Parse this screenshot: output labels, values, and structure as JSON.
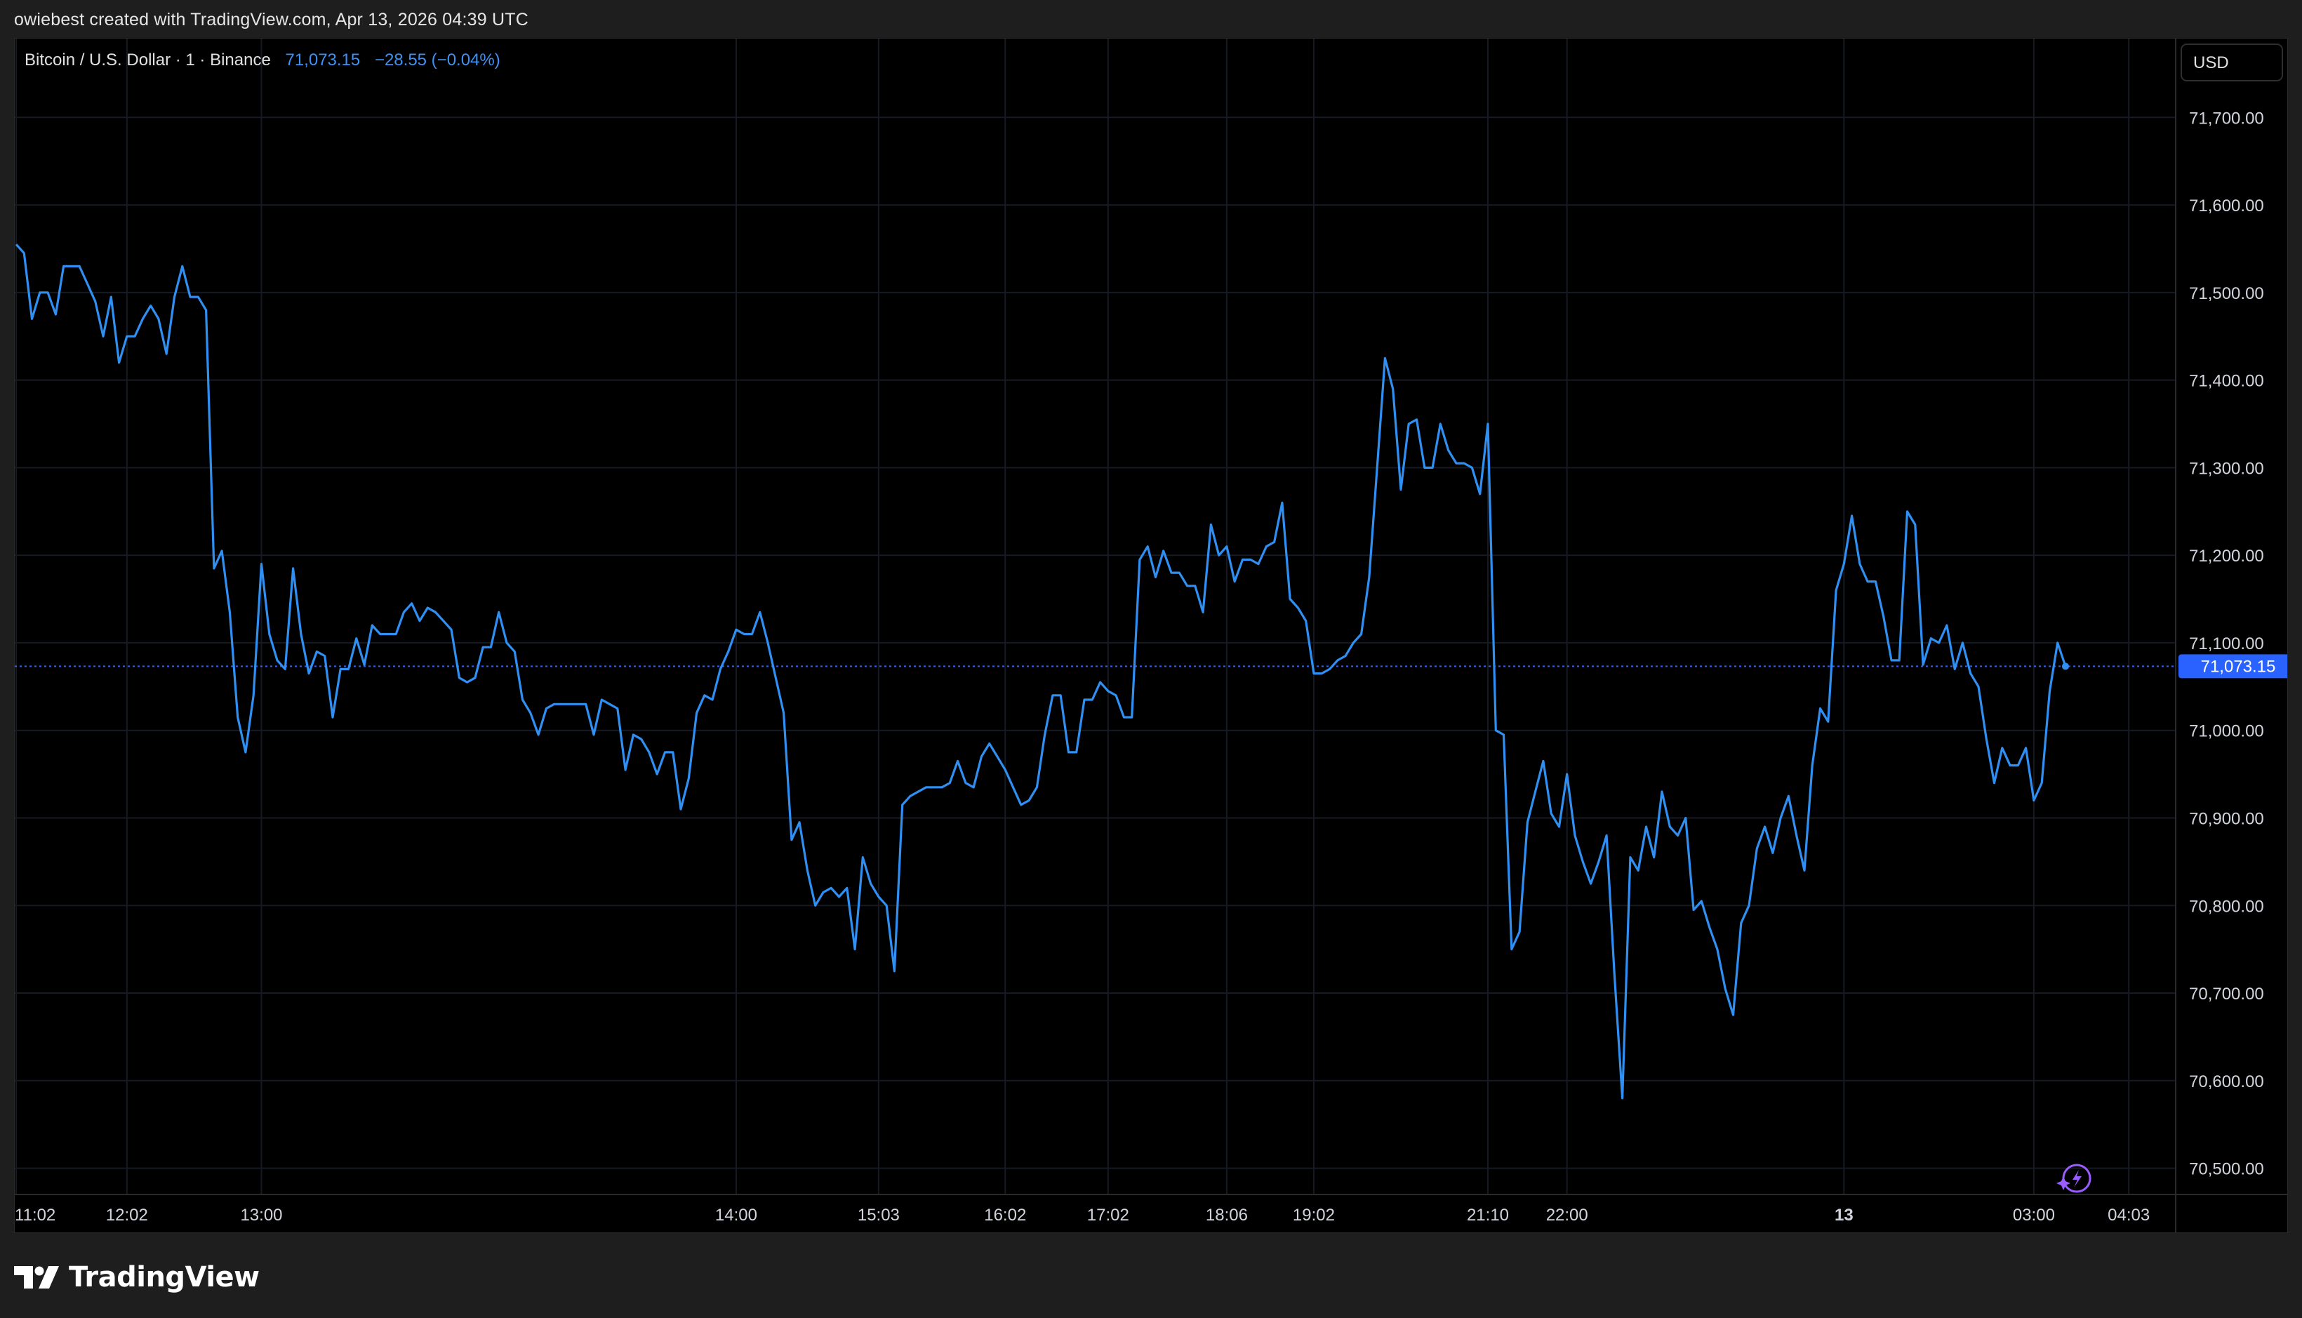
{
  "header": {
    "credit": "owiebest created with TradingView.com, Apr 13, 2026 04:39 UTC"
  },
  "legend": {
    "symbol": "Bitcoin / U.S. Dollar · 1 · Binance",
    "price": "71,073.15",
    "change": "−28.55 (−0.04%)"
  },
  "currency_button": "USD",
  "current_price_label": "71,073.15",
  "footer": {
    "brand": "TradingView"
  },
  "colors": {
    "line": "#2f8ff2",
    "background": "#000000",
    "frame": "#1e1e1e",
    "grid": "#161a22",
    "axis_text": "#d1d4dc",
    "price_tag": "#2962ff",
    "badge": "#9b5cff"
  },
  "chart_data": {
    "type": "line",
    "title": "Bitcoin / U.S. Dollar · 1 · Binance",
    "xlabel": "",
    "ylabel": "",
    "ylim": [
      70470,
      71790
    ],
    "y_ticks": [
      71700,
      71600,
      71500,
      71400,
      71300,
      71200,
      71100,
      71000,
      70900,
      70800,
      70700,
      70600,
      70500
    ],
    "y_tick_labels": [
      "71,700.00",
      "71,600.00",
      "71,500.00",
      "71,400.00",
      "71,300.00",
      "71,200.00",
      "71,100.00",
      "71,000.00",
      "70,900.00",
      "70,800.00",
      "70,700.00",
      "70,600.00",
      "70,500.00"
    ],
    "x_tick_labels": [
      "11:02",
      "12:02",
      "13:00",
      "14:00",
      "15:03",
      "16:02",
      "17:02",
      "18:06",
      "19:02",
      "21:10",
      "22:00",
      "13",
      "03:00",
      "04:03"
    ],
    "x_tick_index": [
      0,
      14,
      31,
      91,
      109,
      125,
      138,
      153,
      164,
      186,
      196,
      231,
      255,
      267
    ],
    "grid": true,
    "legend": "none",
    "last_value": 71073.15,
    "series": [
      {
        "name": "",
        "values": [
          71555,
          71545,
          71470,
          71500,
          71500,
          71475,
          71530,
          71530,
          71530,
          71510,
          71490,
          71450,
          71495,
          71420,
          71450,
          71450,
          71470,
          71485,
          71470,
          71430,
          71495,
          71530,
          71495,
          71495,
          71480,
          71185,
          71205,
          71135,
          71015,
          70975,
          71040,
          71190,
          71110,
          71080,
          71070,
          71185,
          71110,
          71065,
          71090,
          71085,
          71015,
          71070,
          71070,
          71105,
          71075,
          71120,
          71110,
          71110,
          71110,
          71135,
          71145,
          71125,
          71140,
          71135,
          71125,
          71115,
          71060,
          71055,
          71060,
          71095,
          71095,
          71135,
          71100,
          71090,
          71035,
          71020,
          70995,
          71025,
          71030,
          71030,
          71030,
          71030,
          71030,
          70995,
          71035,
          71030,
          71025,
          70955,
          70995,
          70990,
          70975,
          70950,
          70975,
          70975,
          70910,
          70945,
          71020,
          71040,
          71035,
          71070,
          71090,
          71115,
          71110,
          71110,
          71135,
          71100,
          71060,
          71020,
          70875,
          70895,
          70840,
          70800,
          70815,
          70820,
          70810,
          70820,
          70750,
          70855,
          70825,
          70810,
          70800,
          70725,
          70915,
          70925,
          70930,
          70935,
          70935,
          70935,
          70940,
          70965,
          70940,
          70935,
          70970,
          70985,
          70970,
          70955,
          70935,
          70915,
          70920,
          70935,
          70995,
          71040,
          71040,
          70975,
          70975,
          71035,
          71035,
          71055,
          71045,
          71040,
          71015,
          71015,
          71195,
          71210,
          71175,
          71205,
          71180,
          71180,
          71165,
          71165,
          71135,
          71235,
          71200,
          71210,
          71170,
          71195,
          71195,
          71190,
          71210,
          71215,
          71260,
          71150,
          71140,
          71125,
          71065,
          71065,
          71070,
          71080,
          71085,
          71100,
          71110,
          71175,
          71300,
          71425,
          71390,
          71275,
          71350,
          71355,
          71300,
          71300,
          71350,
          71320,
          71305,
          71305,
          71300,
          71270,
          71350,
          71000,
          70995,
          70750,
          70770,
          70895,
          70930,
          70965,
          70905,
          70890,
          70950,
          70880,
          70850,
          70825,
          70850,
          70880,
          70720,
          70580,
          70855,
          70840,
          70890,
          70855,
          70930,
          70890,
          70880,
          70900,
          70795,
          70805,
          70775,
          70750,
          70705,
          70675,
          70780,
          70800,
          70865,
          70890,
          70860,
          70900,
          70925,
          70880,
          70840,
          70960,
          71025,
          71010,
          71160,
          71190,
          71245,
          71190,
          71170,
          71170,
          71130,
          71080,
          71080,
          71250,
          71235,
          71075,
          71105,
          71100,
          71120,
          71070,
          71100,
          71065,
          71050,
          70990,
          70940,
          70980,
          70960,
          70960,
          70980,
          70920,
          70940,
          71045,
          71100,
          71073.15
        ]
      }
    ]
  }
}
